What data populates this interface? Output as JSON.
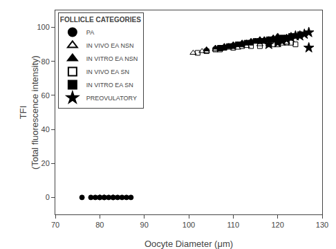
{
  "chart_data": {
    "type": "scatter",
    "xlabel": "Oocyte Diameter (μm)",
    "ylabel": "TFI\n(Total fluorescence intensity)",
    "xlim": [
      70,
      130
    ],
    "ylim": [
      -10,
      110
    ],
    "xticks": [
      70,
      80,
      90,
      100,
      110,
      120,
      130
    ],
    "yticks": [
      0,
      20,
      40,
      60,
      80,
      100
    ],
    "grid": false,
    "legend": "upper left",
    "legend_title": "FOLLICLE CATEGORIES",
    "series": [
      {
        "name": "PA",
        "color": "black",
        "marker": "circle",
        "x": [
          76,
          78,
          79,
          80,
          80,
          81,
          81,
          82,
          83,
          83,
          84,
          85,
          86,
          87
        ],
        "values": [
          0,
          0,
          0,
          0,
          0,
          0,
          0,
          0,
          0,
          0,
          0,
          0,
          0,
          0
        ]
      },
      {
        "name": "IN VIVO EA NSN",
        "color": "black",
        "marker": "triangle-up-open",
        "x": [
          101,
          103,
          104,
          106,
          107,
          109,
          111,
          113,
          116,
          118,
          120,
          122
        ],
        "values": [
          85,
          86,
          86,
          87,
          87,
          88,
          88,
          89,
          90,
          90,
          91,
          91
        ]
      },
      {
        "name": "IN VITRO EA NSN",
        "color": "black",
        "marker": "triangle-up",
        "x": [
          104,
          106,
          107,
          108,
          109,
          110,
          111,
          112,
          113,
          114,
          115,
          116,
          117,
          118,
          119,
          120
        ],
        "values": [
          87,
          88,
          88,
          89,
          89,
          90,
          90,
          91,
          91,
          92,
          92,
          93,
          93,
          93,
          94,
          95
        ]
      },
      {
        "name": "IN VIVO EA SN",
        "color": "black",
        "marker": "square-open",
        "x": [
          102,
          104,
          106,
          107,
          108,
          110,
          112,
          114,
          116,
          118,
          119,
          120,
          121,
          122,
          123,
          124
        ],
        "values": [
          85,
          86,
          87,
          87,
          88,
          88,
          89,
          89,
          89,
          90,
          90,
          90,
          91,
          91,
          91,
          90
        ]
      },
      {
        "name": "IN VITRO EA SN",
        "color": "black",
        "marker": "square",
        "x": [
          107,
          108,
          109,
          110,
          111,
          112,
          113,
          114,
          115,
          116,
          117,
          118,
          119,
          120,
          121,
          122,
          123,
          124,
          125
        ],
        "values": [
          88,
          88,
          89,
          89,
          90,
          90,
          91,
          91,
          92,
          92,
          92,
          93,
          93,
          93,
          94,
          94,
          95,
          95,
          96
        ]
      },
      {
        "name": "PREOVULATORY",
        "color": "black",
        "marker": "star",
        "x": [
          118,
          120,
          121,
          122,
          123,
          124,
          125,
          126,
          127,
          127
        ],
        "values": [
          90,
          91,
          92,
          93,
          94,
          95,
          95,
          96,
          97,
          88
        ]
      }
    ]
  }
}
